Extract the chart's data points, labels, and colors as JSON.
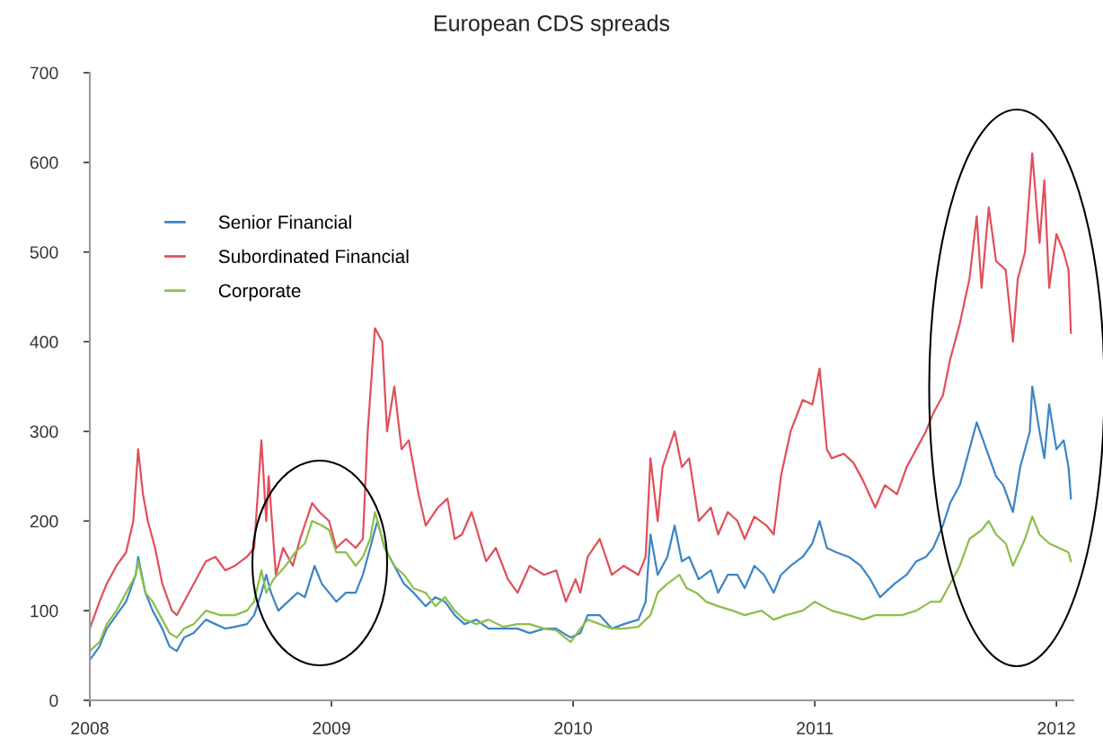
{
  "chart_data": {
    "type": "line",
    "title": "European CDS spreads",
    "xlim": [
      2008,
      2012.07
    ],
    "xticks": [
      2008,
      2009,
      2010,
      2011,
      2012
    ],
    "ylim": [
      0,
      700
    ],
    "yticks": [
      0,
      100,
      200,
      300,
      400,
      500,
      600,
      700
    ],
    "grid": false,
    "legend": "top left",
    "marker": "none",
    "line_style": "solid",
    "series": [
      {
        "name": "Senior Financial",
        "color": "#3d85c6",
        "x": [
          2008.0,
          2008.04,
          2008.07,
          2008.11,
          2008.15,
          2008.19,
          2008.2,
          2008.23,
          2008.26,
          2008.3,
          2008.33,
          2008.36,
          2008.39,
          2008.43,
          2008.48,
          2008.52,
          2008.56,
          2008.6,
          2008.65,
          2008.68,
          2008.71,
          2008.73,
          2008.75,
          2008.78,
          2008.82,
          2008.86,
          2008.89,
          2008.93,
          2008.96,
          2008.99,
          2009.02,
          2009.06,
          2009.1,
          2009.13,
          2009.16,
          2009.19,
          2009.22,
          2009.26,
          2009.3,
          2009.34,
          2009.39,
          2009.43,
          2009.47,
          2009.51,
          2009.55,
          2009.6,
          2009.65,
          2009.71,
          2009.77,
          2009.82,
          2009.88,
          2009.93,
          2009.99,
          2010.03,
          2010.06,
          2010.11,
          2010.16,
          2010.21,
          2010.27,
          2010.3,
          2010.32,
          2010.35,
          2010.39,
          2010.42,
          2010.45,
          2010.48,
          2010.52,
          2010.57,
          2010.6,
          2010.64,
          2010.68,
          2010.71,
          2010.75,
          2010.79,
          2010.83,
          2010.86,
          2010.9,
          2010.95,
          2010.99,
          2011.02,
          2011.05,
          2011.09,
          2011.14,
          2011.19,
          2011.23,
          2011.27,
          2011.33,
          2011.38,
          2011.42,
          2011.46,
          2011.49,
          2011.53,
          2011.56,
          2011.6,
          2011.64,
          2011.67,
          2011.71,
          2011.75,
          2011.78,
          2011.82,
          2011.85,
          2011.89,
          2011.9,
          2011.93,
          2011.95,
          2011.97,
          2012.0,
          2012.03,
          2012.05,
          2012.06
        ],
        "values": [
          45,
          60,
          80,
          95,
          110,
          140,
          160,
          120,
          100,
          80,
          60,
          55,
          70,
          75,
          90,
          85,
          80,
          82,
          85,
          95,
          120,
          140,
          120,
          100,
          110,
          120,
          115,
          150,
          130,
          120,
          110,
          120,
          120,
          140,
          170,
          200,
          170,
          150,
          130,
          120,
          105,
          115,
          110,
          95,
          85,
          90,
          80,
          80,
          80,
          75,
          80,
          80,
          70,
          75,
          95,
          95,
          80,
          85,
          90,
          110,
          185,
          140,
          160,
          195,
          155,
          160,
          135,
          145,
          120,
          140,
          140,
          125,
          150,
          140,
          120,
          140,
          150,
          160,
          175,
          200,
          170,
          165,
          160,
          150,
          135,
          115,
          130,
          140,
          155,
          160,
          170,
          195,
          220,
          240,
          280,
          310,
          280,
          250,
          240,
          210,
          260,
          300,
          350,
          300,
          270,
          330,
          280,
          290,
          260,
          225
        ]
      },
      {
        "name": "Subordinated Financial",
        "color": "#e0505a",
        "x": [
          2008.0,
          2008.04,
          2008.07,
          2008.11,
          2008.15,
          2008.18,
          2008.2,
          2008.22,
          2008.24,
          2008.27,
          2008.3,
          2008.34,
          2008.36,
          2008.39,
          2008.43,
          2008.48,
          2008.52,
          2008.56,
          2008.6,
          2008.65,
          2008.68,
          2008.71,
          2008.73,
          2008.74,
          2008.77,
          2008.8,
          2008.84,
          2008.87,
          2008.92,
          2008.95,
          2008.99,
          2009.02,
          2009.06,
          2009.1,
          2009.13,
          2009.15,
          2009.18,
          2009.21,
          2009.23,
          2009.26,
          2009.29,
          2009.32,
          2009.36,
          2009.39,
          2009.44,
          2009.48,
          2009.51,
          2009.54,
          2009.58,
          2009.64,
          2009.68,
          2009.73,
          2009.77,
          2009.82,
          2009.88,
          2009.93,
          2009.97,
          2010.01,
          2010.03,
          2010.06,
          2010.11,
          2010.16,
          2010.21,
          2010.27,
          2010.3,
          2010.32,
          2010.35,
          2010.37,
          2010.42,
          2010.45,
          2010.48,
          2010.52,
          2010.57,
          2010.6,
          2010.64,
          2010.68,
          2010.71,
          2010.75,
          2010.8,
          2010.83,
          2010.86,
          2010.9,
          2010.95,
          2010.99,
          2011.02,
          2011.05,
          2011.07,
          2011.12,
          2011.16,
          2011.2,
          2011.25,
          2011.29,
          2011.34,
          2011.38,
          2011.42,
          2011.46,
          2011.49,
          2011.53,
          2011.56,
          2011.6,
          2011.64,
          2011.67,
          2011.69,
          2011.72,
          2011.75,
          2011.79,
          2011.82,
          2011.84,
          2011.87,
          2011.9,
          2011.93,
          2011.95,
          2011.97,
          2012.0,
          2012.03,
          2012.05,
          2012.06
        ],
        "values": [
          80,
          110,
          130,
          150,
          165,
          200,
          280,
          230,
          200,
          170,
          130,
          100,
          95,
          110,
          130,
          155,
          160,
          145,
          150,
          160,
          170,
          290,
          200,
          250,
          140,
          170,
          150,
          180,
          220,
          210,
          200,
          170,
          180,
          170,
          180,
          300,
          415,
          400,
          300,
          350,
          280,
          290,
          230,
          195,
          215,
          225,
          180,
          185,
          210,
          155,
          170,
          135,
          120,
          150,
          140,
          145,
          110,
          135,
          120,
          160,
          180,
          140,
          150,
          140,
          160,
          270,
          200,
          260,
          300,
          260,
          270,
          200,
          215,
          185,
          210,
          200,
          180,
          205,
          195,
          185,
          250,
          300,
          335,
          330,
          370,
          280,
          270,
          275,
          265,
          245,
          215,
          240,
          230,
          260,
          280,
          300,
          320,
          340,
          380,
          420,
          470,
          540,
          460,
          550,
          490,
          480,
          400,
          470,
          500,
          610,
          510,
          580,
          460,
          520,
          500,
          480,
          410
        ]
      },
      {
        "name": "Corporate",
        "color": "#8cbf4a",
        "x": [
          2008.0,
          2008.04,
          2008.07,
          2008.11,
          2008.15,
          2008.19,
          2008.2,
          2008.23,
          2008.26,
          2008.3,
          2008.33,
          2008.36,
          2008.39,
          2008.43,
          2008.48,
          2008.54,
          2008.6,
          2008.65,
          2008.68,
          2008.71,
          2008.73,
          2008.76,
          2008.81,
          2008.85,
          2008.89,
          2008.92,
          2008.96,
          2008.99,
          2009.02,
          2009.06,
          2009.1,
          2009.13,
          2009.16,
          2009.18,
          2009.22,
          2009.26,
          2009.3,
          2009.34,
          2009.39,
          2009.43,
          2009.47,
          2009.51,
          2009.55,
          2009.6,
          2009.65,
          2009.71,
          2009.77,
          2009.82,
          2009.88,
          2009.93,
          2009.99,
          2010.03,
          2010.06,
          2010.11,
          2010.16,
          2010.21,
          2010.27,
          2010.32,
          2010.35,
          2010.39,
          2010.44,
          2010.47,
          2010.51,
          2010.55,
          2010.6,
          2010.66,
          2010.71,
          2010.78,
          2010.83,
          2010.88,
          2010.95,
          2011.0,
          2011.07,
          2011.14,
          2011.2,
          2011.25,
          2011.31,
          2011.36,
          2011.42,
          2011.48,
          2011.52,
          2011.56,
          2011.6,
          2011.64,
          2011.69,
          2011.72,
          2011.75,
          2011.79,
          2011.82,
          2011.87,
          2011.9,
          2011.93,
          2011.97,
          2012.01,
          2012.05,
          2012.06
        ],
        "values": [
          55,
          65,
          85,
          100,
          120,
          140,
          155,
          120,
          110,
          90,
          75,
          70,
          80,
          85,
          100,
          95,
          95,
          100,
          110,
          145,
          120,
          135,
          150,
          165,
          175,
          200,
          195,
          190,
          165,
          165,
          150,
          160,
          180,
          210,
          170,
          150,
          140,
          125,
          120,
          105,
          115,
          100,
          90,
          85,
          90,
          82,
          85,
          85,
          80,
          78,
          65,
          80,
          90,
          85,
          80,
          80,
          82,
          95,
          120,
          130,
          140,
          125,
          120,
          110,
          105,
          100,
          95,
          100,
          90,
          95,
          100,
          110,
          100,
          95,
          90,
          95,
          95,
          95,
          100,
          110,
          110,
          130,
          150,
          180,
          190,
          200,
          185,
          175,
          150,
          180,
          205,
          185,
          175,
          170,
          165,
          155
        ]
      }
    ]
  }
}
